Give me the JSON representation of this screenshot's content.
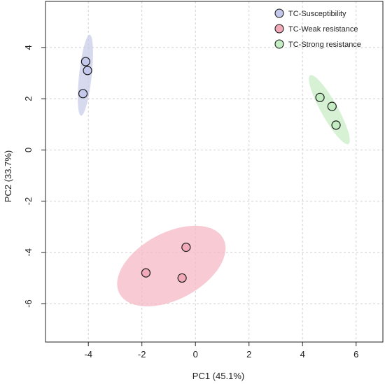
{
  "chart_data": {
    "type": "scatter",
    "xlabel": "PC1 (45.1%)",
    "ylabel": "PC2 (33.7%)",
    "xlim": [
      -5.6,
      7.0
    ],
    "ylim": [
      -7.5,
      5.8
    ],
    "x_ticks": [
      -4,
      -2,
      0,
      2,
      4,
      6
    ],
    "y_ticks": [
      4,
      2,
      0,
      -2,
      -4,
      -6
    ],
    "grid": true,
    "legend_position": "top-right",
    "series": [
      {
        "name": "TC-Susceptibility",
        "color": "#c4c9ec",
        "ellipse_color": "#c9cdea",
        "points": [
          {
            "x": -4.1,
            "y": 3.45
          },
          {
            "x": -4.03,
            "y": 3.1
          },
          {
            "x": -4.2,
            "y": 2.2
          }
        ]
      },
      {
        "name": "TC-Weak resistance",
        "color": "#f2aab9",
        "ellipse_color": "#f5b8c6",
        "points": [
          {
            "x": -0.35,
            "y": -3.8
          },
          {
            "x": -1.85,
            "y": -4.8
          },
          {
            "x": -0.5,
            "y": -5.0
          }
        ]
      },
      {
        "name": "TC-Strong resistance",
        "color": "#c5edc4",
        "ellipse_color": "#c8ecc6",
        "points": [
          {
            "x": 4.65,
            "y": 2.05
          },
          {
            "x": 5.1,
            "y": 1.7
          },
          {
            "x": 5.25,
            "y": 0.97
          }
        ]
      }
    ]
  }
}
